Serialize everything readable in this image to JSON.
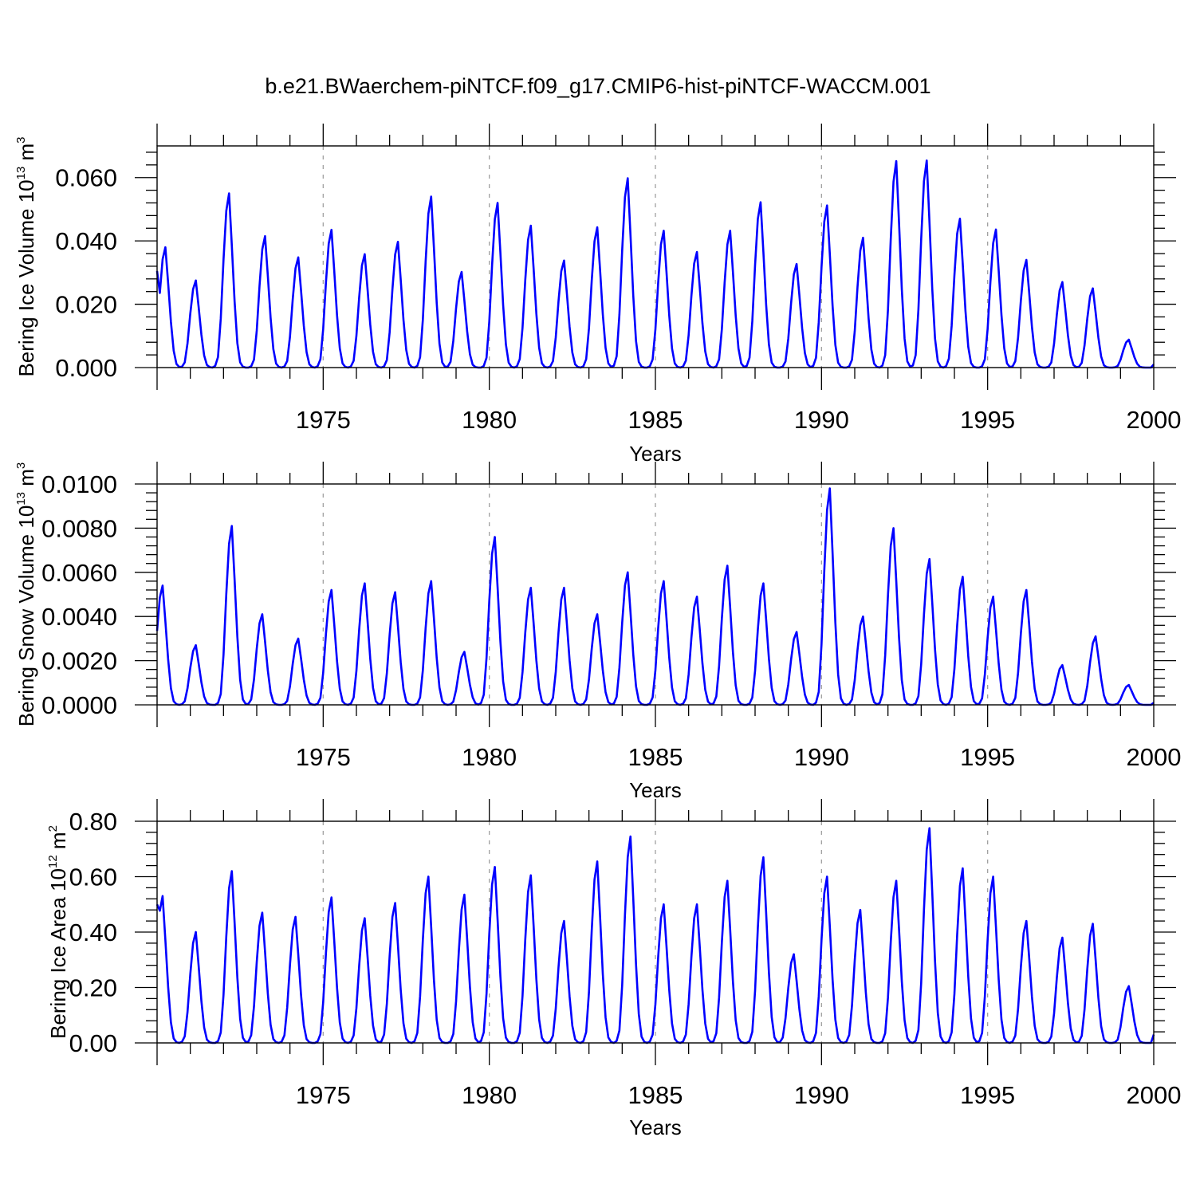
{
  "chart_data": [
    {
      "type": "line",
      "title": "b.e21.BWaerchem-piNTCF.f09_g17.CMIP6-hist-piNTCF-WACCM.001",
      "xlabel": "Years",
      "ylabel": "Bering Ice Volume 10",
      "ylabel_exp": "13",
      "ylabel_unit": " m",
      "ylabel_unit_exp": "3",
      "xlim": [
        1970,
        2000
      ],
      "ylim": [
        0,
        0.07
      ],
      "xticks": [
        "1975",
        "1980",
        "1985",
        "1990",
        "1995",
        "2000"
      ],
      "yticks": [
        "0.000",
        "0.020",
        "0.040",
        "0.060"
      ],
      "grid_x": [
        1975,
        1980,
        1985,
        1990,
        1995
      ],
      "color": "#0000ff",
      "peaks": [
        0.038,
        0.0275,
        0.055,
        0.0415,
        0.0348,
        0.0435,
        0.0358,
        0.0397,
        0.054,
        0.0302,
        0.052,
        0.0448,
        0.0338,
        0.0443,
        0.0598,
        0.0432,
        0.0365,
        0.0432,
        0.0522,
        0.0327,
        0.0512,
        0.041,
        0.0652,
        0.0654,
        0.047,
        0.0436,
        0.034,
        0.027,
        0.025,
        0.0088
      ],
      "peak_month": [
        3,
        2,
        2,
        3,
        3,
        3,
        3,
        3,
        3,
        2,
        3,
        3,
        3,
        3,
        2,
        3,
        3,
        3,
        2,
        3,
        2,
        3,
        3,
        2,
        2,
        3,
        2,
        3,
        2,
        3
      ],
      "start": 0.0305,
      "end": 0.001
    },
    {
      "type": "line",
      "title": "",
      "xlabel": "Years",
      "ylabel": "Bering Snow Volume 10",
      "ylabel_exp": "13",
      "ylabel_unit": " m",
      "ylabel_unit_exp": "3",
      "xlim": [
        1970,
        2000
      ],
      "ylim": [
        0,
        0.01
      ],
      "xticks": [
        "1975",
        "1980",
        "1985",
        "1990",
        "1995",
        "2000"
      ],
      "yticks": [
        "0.0000",
        "0.0020",
        "0.0040",
        "0.0060",
        "0.0080",
        "0.0100"
      ],
      "grid_x": [
        1975,
        1980,
        1985,
        1990,
        1995
      ],
      "color": "#0000ff",
      "peaks": [
        0.0054,
        0.0027,
        0.0081,
        0.0041,
        0.003,
        0.0052,
        0.0055,
        0.0051,
        0.0056,
        0.0024,
        0.0076,
        0.0053,
        0.0053,
        0.0041,
        0.006,
        0.0056,
        0.0049,
        0.0063,
        0.0055,
        0.0033,
        0.0098,
        0.004,
        0.008,
        0.0066,
        0.0058,
        0.0049,
        0.0052,
        0.0018,
        0.0031,
        0.0009
      ],
      "peak_month": [
        2,
        2,
        3,
        2,
        3,
        3,
        3,
        2,
        3,
        3,
        2,
        3,
        3,
        3,
        2,
        3,
        3,
        2,
        3,
        3,
        3,
        3,
        2,
        3,
        3,
        2,
        2,
        3,
        3,
        3
      ],
      "start": 0.0016,
      "end": 0.0001
    },
    {
      "type": "line",
      "title": "",
      "xlabel": "Years",
      "ylabel": "Bering Ice Area 10",
      "ylabel_exp": "12",
      "ylabel_unit": " m",
      "ylabel_unit_exp": "2",
      "xlim": [
        1970,
        2000
      ],
      "ylim": [
        0,
        0.8
      ],
      "xticks": [
        "1975",
        "1980",
        "1985",
        "1990",
        "1995",
        "2000"
      ],
      "yticks": [
        "0.00",
        "0.20",
        "0.40",
        "0.60",
        "0.80"
      ],
      "grid_x": [
        1975,
        1980,
        1985,
        1990,
        1995
      ],
      "color": "#0000ff",
      "peaks": [
        0.53,
        0.4,
        0.62,
        0.47,
        0.455,
        0.525,
        0.45,
        0.505,
        0.6,
        0.535,
        0.635,
        0.605,
        0.44,
        0.655,
        0.745,
        0.5,
        0.5,
        0.585,
        0.67,
        0.32,
        0.6,
        0.48,
        0.585,
        0.775,
        0.63,
        0.6,
        0.44,
        0.38,
        0.43,
        0.205
      ],
      "peak_month": [
        2,
        2,
        3,
        2,
        2,
        3,
        3,
        2,
        2,
        3,
        2,
        3,
        3,
        3,
        3,
        3,
        3,
        2,
        3,
        2,
        2,
        2,
        3,
        3,
        3,
        2,
        2,
        3,
        2,
        3
      ],
      "start": 0.5,
      "end": 0.03
    }
  ]
}
